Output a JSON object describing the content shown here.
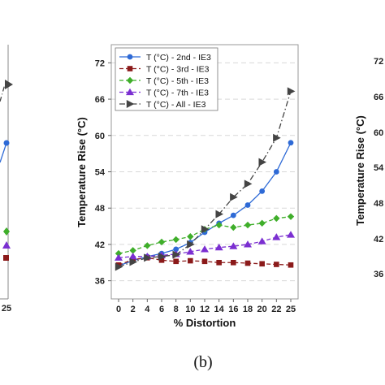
{
  "panel_label": "(b)",
  "left_partial": {
    "ticks": [
      "25"
    ]
  },
  "right_partial": {
    "ticks": [
      "72",
      "66",
      "60",
      "54",
      "48",
      "42",
      "36"
    ],
    "ylabel": "Temperature Rise (°C)"
  },
  "chart_data": {
    "type": "line",
    "xlabel": "% Distortion",
    "ylabel": "Temperature Rise (°C)",
    "x": [
      0,
      2,
      4,
      6,
      8,
      10,
      12,
      14,
      16,
      18,
      20,
      22,
      25
    ],
    "ylim": [
      33,
      75
    ],
    "yticks": [
      36,
      42,
      48,
      54,
      60,
      66,
      72
    ],
    "grid": "horizontal dashed",
    "legend_position": "top-left",
    "series": [
      {
        "name": "T (°C) - 2nd - IE3",
        "color": "#2e6ad6",
        "marker": "circle",
        "dash": "solid",
        "values": [
          38.5,
          39.3,
          40.0,
          40.5,
          41.2,
          42.3,
          44.0,
          45.5,
          46.8,
          48.5,
          50.8,
          54.0,
          58.8
        ]
      },
      {
        "name": "T (°C) - 3rd - IE3",
        "color": "#8b1a1a",
        "marker": "square",
        "dash": "dashed",
        "values": [
          38.6,
          39.5,
          39.8,
          39.4,
          39.2,
          39.3,
          39.2,
          39.0,
          39.0,
          38.9,
          38.8,
          38.7,
          38.6
        ]
      },
      {
        "name": "T (°C) - 5th - IE3",
        "color": "#3fae2a",
        "marker": "diamond",
        "dash": "dashed",
        "values": [
          40.5,
          41.0,
          41.8,
          42.4,
          42.8,
          43.3,
          44.5,
          45.2,
          44.8,
          45.2,
          45.5,
          46.3,
          46.6
        ]
      },
      {
        "name": "T (°C) - 7th - IE3",
        "color": "#7b2fd1",
        "marker": "triangle",
        "dash": "dashed",
        "values": [
          39.8,
          40.0,
          40.0,
          40.2,
          40.4,
          40.8,
          41.2,
          41.5,
          41.7,
          42.0,
          42.5,
          43.2,
          43.6
        ]
      },
      {
        "name": "T (°C) - All -  IE3",
        "color": "#444444",
        "marker": "triangle-right",
        "dash": "dashdot",
        "values": [
          38.3,
          39.1,
          39.8,
          40.0,
          40.3,
          42.0,
          44.5,
          47.0,
          49.8,
          52.0,
          55.6,
          59.6,
          67.3
        ]
      }
    ]
  }
}
